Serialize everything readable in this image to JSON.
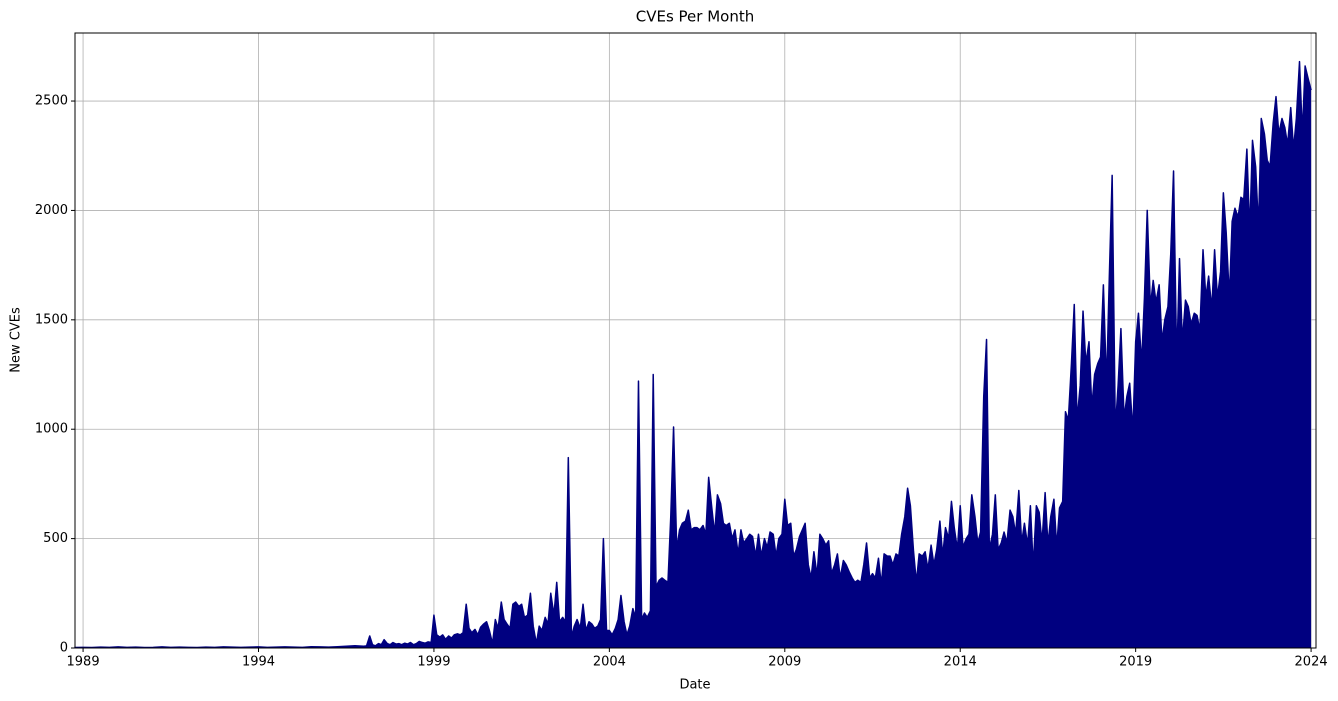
{
  "chart_data": {
    "type": "area",
    "title": "CVEs Per Month",
    "x_label": "Date",
    "y_label": "New CVEs",
    "color": "#000080",
    "grid": true,
    "xlim": [
      1988.77,
      2024.14
    ],
    "xticks": [
      1989,
      1994,
      1999,
      2004,
      2009,
      2014,
      2019,
      2024
    ],
    "ylim": [
      0,
      2811
    ],
    "yticks": [
      0,
      500,
      1000,
      1500,
      2000,
      2500
    ],
    "x": [
      1988.75,
      1989,
      1989.25,
      1989.5,
      1989.75,
      1990,
      1990.25,
      1990.5,
      1990.75,
      1991,
      1991.25,
      1991.5,
      1991.75,
      1992,
      1992.25,
      1992.5,
      1992.75,
      1993,
      1993.25,
      1993.5,
      1993.75,
      1994,
      1994.25,
      1994.5,
      1994.75,
      1995,
      1995.25,
      1995.5,
      1995.75,
      1996,
      1996.25,
      1996.5,
      1996.75,
      1997,
      1997.08,
      1997.17,
      1997.25,
      1997.33,
      1997.42,
      1997.5,
      1997.58,
      1997.67,
      1997.75,
      1997.83,
      1997.92,
      1998,
      1998.08,
      1998.17,
      1998.25,
      1998.33,
      1998.42,
      1998.5,
      1998.58,
      1998.67,
      1998.75,
      1998.83,
      1998.92,
      1999,
      1999.08,
      1999.17,
      1999.25,
      1999.33,
      1999.42,
      1999.5,
      1999.58,
      1999.67,
      1999.75,
      1999.83,
      1999.92,
      2000,
      2000.08,
      2000.17,
      2000.25,
      2000.33,
      2000.42,
      2000.5,
      2000.58,
      2000.67,
      2000.75,
      2000.83,
      2000.92,
      2001,
      2001.08,
      2001.17,
      2001.25,
      2001.33,
      2001.42,
      2001.5,
      2001.58,
      2001.67,
      2001.75,
      2001.83,
      2001.92,
      2002,
      2002.08,
      2002.17,
      2002.25,
      2002.33,
      2002.42,
      2002.5,
      2002.58,
      2002.67,
      2002.75,
      2002.83,
      2002.92,
      2003,
      2003.08,
      2003.17,
      2003.25,
      2003.33,
      2003.42,
      2003.5,
      2003.58,
      2003.67,
      2003.75,
      2003.83,
      2003.92,
      2004,
      2004.08,
      2004.17,
      2004.25,
      2004.33,
      2004.42,
      2004.5,
      2004.58,
      2004.67,
      2004.75,
      2004.83,
      2004.92,
      2005,
      2005.08,
      2005.17,
      2005.25,
      2005.33,
      2005.42,
      2005.5,
      2005.58,
      2005.67,
      2005.75,
      2005.83,
      2005.92,
      2006,
      2006.08,
      2006.17,
      2006.25,
      2006.33,
      2006.42,
      2006.5,
      2006.58,
      2006.67,
      2006.75,
      2006.83,
      2006.92,
      2007,
      2007.08,
      2007.17,
      2007.25,
      2007.33,
      2007.42,
      2007.5,
      2007.58,
      2007.67,
      2007.75,
      2007.83,
      2007.92,
      2008,
      2008.08,
      2008.17,
      2008.25,
      2008.33,
      2008.42,
      2008.5,
      2008.58,
      2008.67,
      2008.75,
      2008.83,
      2008.92,
      2009,
      2009.08,
      2009.17,
      2009.25,
      2009.33,
      2009.42,
      2009.5,
      2009.58,
      2009.67,
      2009.75,
      2009.83,
      2009.92,
      2010,
      2010.08,
      2010.17,
      2010.25,
      2010.33,
      2010.42,
      2010.5,
      2010.58,
      2010.67,
      2010.75,
      2010.83,
      2010.92,
      2011,
      2011.08,
      2011.17,
      2011.25,
      2011.33,
      2011.42,
      2011.5,
      2011.58,
      2011.67,
      2011.75,
      2011.83,
      2011.92,
      2012,
      2012.08,
      2012.17,
      2012.25,
      2012.33,
      2012.42,
      2012.5,
      2012.58,
      2012.67,
      2012.75,
      2012.83,
      2012.92,
      2013,
      2013.08,
      2013.17,
      2013.25,
      2013.33,
      2013.42,
      2013.5,
      2013.58,
      2013.67,
      2013.75,
      2013.83,
      2013.92,
      2014,
      2014.08,
      2014.17,
      2014.25,
      2014.33,
      2014.42,
      2014.5,
      2014.58,
      2014.67,
      2014.75,
      2014.83,
      2014.92,
      2015,
      2015.08,
      2015.17,
      2015.25,
      2015.33,
      2015.42,
      2015.5,
      2015.58,
      2015.67,
      2015.75,
      2015.83,
      2015.92,
      2016,
      2016.08,
      2016.17,
      2016.25,
      2016.33,
      2016.42,
      2016.5,
      2016.58,
      2016.67,
      2016.75,
      2016.83,
      2016.92,
      2017,
      2017.08,
      2017.17,
      2017.25,
      2017.33,
      2017.42,
      2017.5,
      2017.58,
      2017.67,
      2017.75,
      2017.83,
      2017.92,
      2018,
      2018.08,
      2018.17,
      2018.25,
      2018.33,
      2018.42,
      2018.5,
      2018.58,
      2018.67,
      2018.75,
      2018.83,
      2018.92,
      2019,
      2019.08,
      2019.17,
      2019.25,
      2019.33,
      2019.42,
      2019.5,
      2019.58,
      2019.67,
      2019.75,
      2019.83,
      2019.92,
      2020,
      2020.08,
      2020.17,
      2020.25,
      2020.33,
      2020.42,
      2020.5,
      2020.58,
      2020.67,
      2020.75,
      2020.83,
      2020.92,
      2021,
      2021.08,
      2021.17,
      2021.25,
      2021.33,
      2021.42,
      2021.5,
      2021.58,
      2021.67,
      2021.75,
      2021.83,
      2021.92,
      2022,
      2022.08,
      2022.17,
      2022.25,
      2022.33,
      2022.42,
      2022.5,
      2022.58,
      2022.67,
      2022.75,
      2022.83,
      2022.92,
      2023,
      2023.08,
      2023.17,
      2023.25,
      2023.33,
      2023.42,
      2023.5,
      2023.58,
      2023.67,
      2023.75,
      2023.83,
      2023.92,
      2024
    ],
    "values": [
      2,
      3,
      2,
      4,
      3,
      5,
      3,
      4,
      2,
      3,
      5,
      3,
      4,
      3,
      2,
      4,
      3,
      5,
      4,
      3,
      4,
      5,
      3,
      4,
      5,
      4,
      3,
      6,
      5,
      4,
      6,
      8,
      10,
      8,
      10,
      55,
      15,
      10,
      20,
      15,
      38,
      20,
      15,
      25,
      18,
      20,
      15,
      22,
      18,
      25,
      15,
      20,
      30,
      25,
      22,
      28,
      25,
      150,
      60,
      50,
      60,
      40,
      55,
      45,
      60,
      65,
      60,
      70,
      200,
      90,
      70,
      85,
      60,
      95,
      110,
      120,
      80,
      20,
      130,
      90,
      210,
      130,
      110,
      90,
      200,
      210,
      190,
      200,
      140,
      150,
      250,
      100,
      20,
      100,
      80,
      140,
      110,
      250,
      150,
      300,
      120,
      140,
      120,
      870,
      50,
      100,
      130,
      90,
      200,
      80,
      120,
      110,
      90,
      100,
      130,
      500,
      80,
      80,
      60,
      90,
      130,
      240,
      120,
      60,
      100,
      180,
      140,
      1220,
      130,
      160,
      140,
      170,
      1250,
      280,
      310,
      320,
      310,
      300,
      600,
      1010,
      450,
      540,
      570,
      580,
      630,
      540,
      550,
      550,
      540,
      560,
      520,
      780,
      640,
      520,
      700,
      660,
      570,
      560,
      570,
      500,
      540,
      430,
      540,
      480,
      500,
      520,
      510,
      420,
      520,
      420,
      500,
      460,
      530,
      520,
      420,
      500,
      520,
      680,
      560,
      570,
      420,
      450,
      510,
      540,
      570,
      380,
      320,
      440,
      330,
      520,
      500,
      470,
      490,
      340,
      380,
      430,
      320,
      400,
      380,
      350,
      320,
      300,
      310,
      300,
      380,
      480,
      320,
      340,
      320,
      410,
      290,
      430,
      420,
      420,
      380,
      430,
      420,
      520,
      600,
      730,
      650,
      440,
      300,
      430,
      420,
      440,
      360,
      470,
      380,
      450,
      580,
      420,
      550,
      500,
      670,
      550,
      450,
      650,
      460,
      500,
      520,
      700,
      600,
      480,
      530,
      1150,
      1410,
      450,
      520,
      700,
      450,
      480,
      530,
      480,
      630,
      600,
      520,
      720,
      480,
      570,
      470,
      650,
      370,
      650,
      620,
      480,
      710,
      470,
      600,
      680,
      460,
      640,
      670,
      1080,
      1040,
      1300,
      1570,
      1040,
      1200,
      1540,
      1300,
      1400,
      1100,
      1250,
      1300,
      1330,
      1660,
      1200,
      1700,
      2160,
      1000,
      1200,
      1460,
      1050,
      1150,
      1210,
      990,
      1400,
      1530,
      1300,
      1600,
      2000,
      1560,
      1680,
      1580,
      1660,
      1400,
      1500,
      1560,
      1800,
      2180,
      1300,
      1780,
      1400,
      1590,
      1560,
      1480,
      1530,
      1520,
      1450,
      1820,
      1600,
      1700,
      1550,
      1820,
      1600,
      1720,
      2080,
      1900,
      1600,
      1950,
      2010,
      1970,
      2060,
      2050,
      2280,
      1900,
      2320,
      2200,
      1920,
      2420,
      2350,
      2230,
      2200,
      2400,
      2520,
      2350,
      2420,
      2380,
      2300,
      2470,
      2280,
      2420,
      2680,
      2350,
      2660,
      2600,
      2550
    ]
  }
}
